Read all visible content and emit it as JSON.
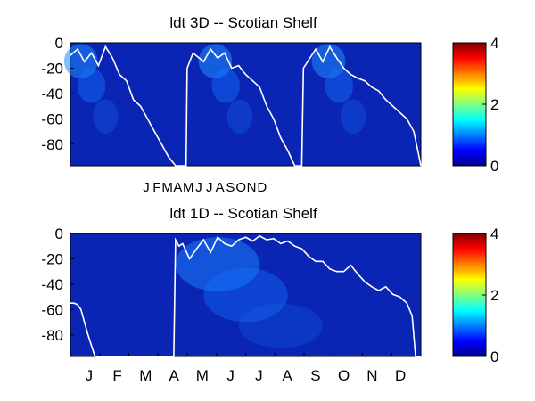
{
  "chart_data": [
    {
      "type": "heatmap",
      "title": "ldt 3D   -- Scotian Shelf",
      "xlabel": "",
      "ylabel": "",
      "ylim": [
        -97,
        0
      ],
      "yticks": [
        0,
        -20,
        -40,
        -60,
        -80
      ],
      "xtick_labels": [
        "J",
        "F",
        "M",
        "A",
        "M",
        "J",
        "J",
        "A",
        "S",
        "O",
        "N",
        "D"
      ],
      "xtick_labels_compressed": true,
      "years_shown": 3,
      "colorbar": {
        "min": 0,
        "max": 4,
        "ticks": [
          0,
          2,
          4
        ]
      },
      "background_value": 0.15,
      "mixed_layer_line": {
        "color": "#ffffff",
        "t": [
          0.0,
          0.02,
          0.04,
          0.06,
          0.08,
          0.1,
          0.12,
          0.14,
          0.16,
          0.18,
          0.2,
          0.22,
          0.24,
          0.26,
          0.28,
          0.3,
          0.315,
          0.33,
          0.333,
          0.35,
          0.38,
          0.4,
          0.42,
          0.44,
          0.46,
          0.48,
          0.5,
          0.52,
          0.54,
          0.56,
          0.58,
          0.6,
          0.62,
          0.64,
          0.65,
          0.66,
          0.665,
          0.7,
          0.72,
          0.74,
          0.76,
          0.78,
          0.8,
          0.82,
          0.84,
          0.86,
          0.88,
          0.9,
          0.92,
          0.94,
          0.96,
          0.98,
          0.995,
          1.0
        ],
        "depth": [
          -10,
          -5,
          -15,
          -8,
          -18,
          -3,
          -12,
          -25,
          -30,
          -45,
          -50,
          -60,
          -70,
          -80,
          -90,
          -97,
          -97,
          -97,
          -20,
          -8,
          -15,
          -5,
          -12,
          -8,
          -20,
          -18,
          -25,
          -30,
          -35,
          -50,
          -60,
          -75,
          -85,
          -97,
          -97,
          -97,
          -20,
          -5,
          -15,
          -3,
          -12,
          -20,
          -25,
          -28,
          -30,
          -35,
          -38,
          -45,
          -50,
          -55,
          -60,
          -70,
          -90,
          -97
        ]
      }
    },
    {
      "type": "heatmap",
      "title": "ldt 1D   -- Scotian Shelf",
      "xlabel": "",
      "ylabel": "",
      "ylim": [
        -97,
        0
      ],
      "yticks": [
        0,
        -20,
        -40,
        -60,
        -80
      ],
      "xtick_labels": [
        "J",
        "F",
        "M",
        "A",
        "M",
        "J",
        "J",
        "A",
        "S",
        "O",
        "N",
        "D"
      ],
      "xtick_labels_compressed": false,
      "years_shown": 1,
      "colorbar": {
        "min": 0,
        "max": 4,
        "ticks": [
          0,
          2,
          4
        ]
      },
      "background_value": 0.15,
      "mixed_layer_line": {
        "color": "#ffffff",
        "t": [
          0.0,
          0.01,
          0.02,
          0.03,
          0.05,
          0.07,
          0.1,
          0.2,
          0.29,
          0.295,
          0.3,
          0.31,
          0.32,
          0.34,
          0.36,
          0.38,
          0.4,
          0.42,
          0.44,
          0.46,
          0.48,
          0.5,
          0.52,
          0.54,
          0.56,
          0.58,
          0.6,
          0.62,
          0.64,
          0.66,
          0.68,
          0.7,
          0.72,
          0.74,
          0.76,
          0.78,
          0.8,
          0.82,
          0.84,
          0.86,
          0.88,
          0.9,
          0.92,
          0.94,
          0.96,
          0.975,
          0.985,
          1.0
        ],
        "depth": [
          -55,
          -55,
          -56,
          -60,
          -80,
          -97,
          -97,
          -97,
          -97,
          -97,
          -5,
          -10,
          -8,
          -20,
          -12,
          -5,
          -15,
          -3,
          -8,
          -10,
          -5,
          -3,
          -6,
          -2,
          -5,
          -4,
          -8,
          -6,
          -10,
          -12,
          -18,
          -22,
          -22,
          -28,
          -30,
          -30,
          -25,
          -32,
          -38,
          -42,
          -45,
          -42,
          -48,
          -50,
          -55,
          -65,
          -97,
          -97
        ]
      }
    }
  ]
}
